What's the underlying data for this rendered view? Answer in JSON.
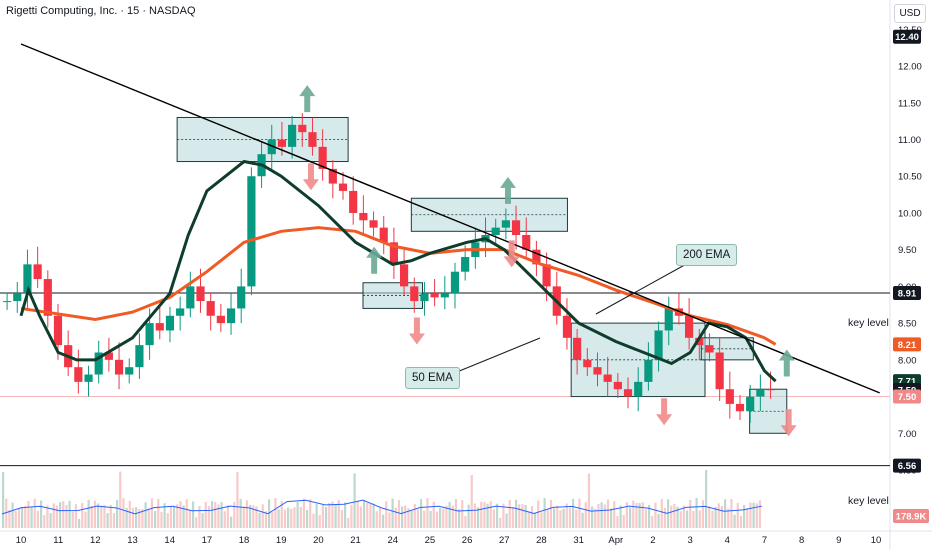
{
  "header": {
    "title": "Rigetti Computing, Inc. · 15 · NASDAQ",
    "currency": "USD"
  },
  "annotations": {
    "ema200": "200 EMA",
    "ema50": "50 EMA",
    "key_level_upper": "key level",
    "key_level_lower": "key level"
  },
  "colors": {
    "ema200": "#f05a24",
    "ema50": "#0f3d2c",
    "trendline": "#000000",
    "up_arrow": "#6aa896",
    "down_arrow": "#f08a8a",
    "box_fill": "#b6d8da"
  },
  "chart_data": {
    "type": "candlestick",
    "ylim": [
      6.5,
      12.6
    ],
    "y_ticks": [
      "12.50",
      "12.00",
      "11.50",
      "11.00",
      "10.50",
      "10.00",
      "9.50",
      "9.00",
      "8.50",
      "8.00",
      "7.50",
      "7.00",
      "6.50"
    ],
    "x_ticks": [
      "10",
      "11",
      "12",
      "13",
      "14",
      "17",
      "18",
      "19",
      "20",
      "21",
      "24",
      "25",
      "26",
      "27",
      "28",
      "31",
      "Apr",
      "2",
      "3",
      "4",
      "7",
      "8",
      "9",
      "10"
    ],
    "price_labels": [
      {
        "value": 12.4,
        "text": "12.40",
        "color": "#131722"
      },
      {
        "value": 8.91,
        "text": "8.91",
        "color": "#131722"
      },
      {
        "value": 8.21,
        "text": "8.21",
        "color": "#f05a24"
      },
      {
        "value": 7.71,
        "text": "7.71",
        "color": "#0f3d2c"
      },
      {
        "value": 7.59,
        "text": "7.59",
        "color": "#131722"
      },
      {
        "value": 7.5,
        "text": "7.50",
        "color": "#f08a8a"
      },
      {
        "value": 6.56,
        "text": "6.56",
        "color": "#131722"
      }
    ],
    "volume_label": "178.9K",
    "key_levels": [
      8.91,
      6.56
    ],
    "ema200": [
      [
        0,
        8.7
      ],
      [
        2,
        8.55
      ],
      [
        3,
        8.65
      ],
      [
        4,
        8.85
      ],
      [
        5,
        9.2
      ],
      [
        6,
        9.6
      ],
      [
        7,
        9.75
      ],
      [
        8,
        9.8
      ],
      [
        9,
        9.75
      ],
      [
        10,
        9.55
      ],
      [
        11,
        9.45
      ],
      [
        12,
        9.5
      ],
      [
        13,
        9.5
      ],
      [
        14,
        9.3
      ],
      [
        15,
        9.15
      ],
      [
        16,
        8.95
      ],
      [
        17,
        8.78
      ],
      [
        18,
        8.6
      ],
      [
        19,
        8.48
      ],
      [
        20,
        8.3
      ],
      [
        20.3,
        8.21
      ]
    ],
    "ema50": [
      [
        0,
        8.6
      ],
      [
        0.2,
        8.95
      ],
      [
        0.5,
        8.6
      ],
      [
        1,
        8.1
      ],
      [
        1.5,
        8.0
      ],
      [
        2,
        8.0
      ],
      [
        3,
        8.3
      ],
      [
        4,
        8.9
      ],
      [
        4.5,
        9.7
      ],
      [
        5,
        10.3
      ],
      [
        6,
        10.7
      ],
      [
        6.5,
        10.65
      ],
      [
        7,
        10.5
      ],
      [
        8,
        10.1
      ],
      [
        9,
        9.6
      ],
      [
        10,
        9.3
      ],
      [
        10.5,
        9.35
      ],
      [
        11,
        9.45
      ],
      [
        12,
        9.6
      ],
      [
        12.5,
        9.65
      ],
      [
        13,
        9.5
      ],
      [
        14,
        9.0
      ],
      [
        15,
        8.5
      ],
      [
        16,
        8.25
      ],
      [
        17,
        8.05
      ],
      [
        17.5,
        7.95
      ],
      [
        18,
        8.1
      ],
      [
        18.5,
        8.5
      ],
      [
        19,
        8.45
      ],
      [
        19.5,
        8.3
      ],
      [
        20,
        7.85
      ],
      [
        20.3,
        7.71
      ]
    ],
    "trendline": [
      [
        0,
        12.3
      ],
      [
        23.1,
        7.55
      ]
    ],
    "channels": [
      {
        "name": "box-top",
        "x": [
          4.2,
          8.8
        ],
        "y": [
          10.7,
          11.3
        ]
      },
      {
        "name": "flag-1",
        "x": [
          10.5,
          14.7
        ],
        "y": [
          9.75,
          10.2
        ]
      },
      {
        "name": "range-1",
        "x": [
          9.2,
          10.8
        ],
        "y": [
          8.7,
          9.05
        ]
      },
      {
        "name": "flag-2",
        "x": [
          14.8,
          18.4
        ],
        "y": [
          7.5,
          8.5
        ]
      },
      {
        "name": "range-2",
        "x": [
          18.3,
          19.7
        ],
        "y": [
          8.0,
          8.3
        ]
      },
      {
        "name": "box-bottom",
        "x": [
          19.6,
          20.6
        ],
        "y": [
          7.0,
          7.6
        ]
      }
    ],
    "arrows": [
      {
        "dir": "up",
        "x": 7.7,
        "y": 11.55
      },
      {
        "dir": "down",
        "x": 7.8,
        "y": 10.5
      },
      {
        "dir": "up",
        "x": 9.5,
        "y": 9.35
      },
      {
        "dir": "down",
        "x": 10.65,
        "y": 8.4
      },
      {
        "dir": "up",
        "x": 13.1,
        "y": 10.3
      },
      {
        "dir": "down",
        "x": 13.2,
        "y": 9.45
      },
      {
        "dir": "down",
        "x": 17.3,
        "y": 7.3
      },
      {
        "dir": "up",
        "x": 20.6,
        "y": 7.95
      },
      {
        "dir": "down",
        "x": 20.65,
        "y": 7.15
      }
    ],
    "candles_close": [
      8.8,
      8.9,
      9.3,
      9.1,
      8.6,
      8.2,
      7.9,
      7.7,
      7.8,
      8.1,
      8.0,
      7.8,
      7.9,
      8.2,
      8.5,
      8.4,
      8.6,
      8.7,
      9.0,
      8.8,
      8.6,
      8.5,
      8.7,
      9.0,
      10.5,
      10.8,
      11.0,
      10.9,
      11.2,
      11.1,
      10.9,
      10.6,
      10.4,
      10.3,
      10.0,
      9.9,
      9.8,
      9.6,
      9.3,
      9.0,
      8.8,
      8.9,
      8.85,
      8.9,
      9.2,
      9.4,
      9.6,
      9.7,
      9.8,
      9.9,
      9.7,
      9.5,
      9.3,
      9.0,
      8.6,
      8.3,
      8.0,
      7.9,
      7.8,
      7.7,
      7.6,
      7.5,
      7.7,
      8.0,
      8.4,
      8.7,
      8.6,
      8.3,
      8.2,
      8.1,
      7.6,
      7.4,
      7.3,
      7.5,
      7.6,
      7.59
    ],
    "last_close": 7.59
  }
}
